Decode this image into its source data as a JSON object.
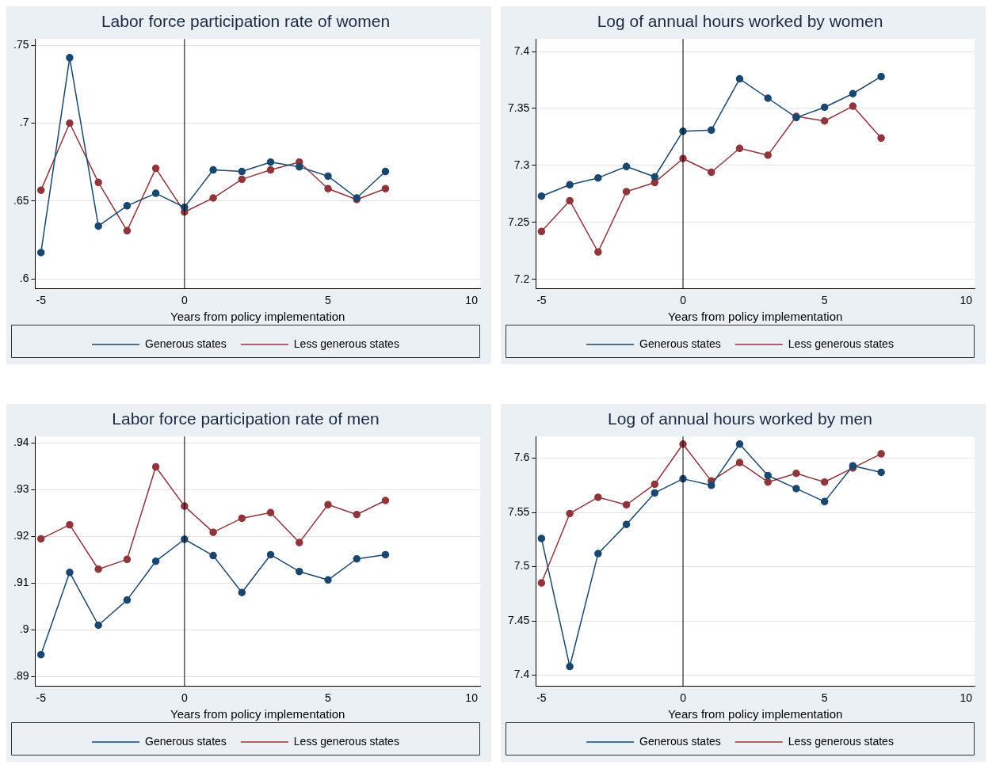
{
  "chart_data": [
    {
      "type": "line",
      "title": "Labor force participation rate of women",
      "xlabel": "Years from policy implementation",
      "x": [
        -5,
        -4,
        -3,
        -2,
        -1,
        0,
        1,
        2,
        3,
        4,
        5,
        6,
        7
      ],
      "xlim": [
        -5.2,
        10.3
      ],
      "xticks": [
        -5,
        0,
        5,
        10
      ],
      "ylim": [
        0.594,
        0.754
      ],
      "yticks": [
        {
          "value": 0.6,
          "label": ".6"
        },
        {
          "value": 0.65,
          "label": ".65"
        },
        {
          "value": 0.7,
          "label": ".7"
        },
        {
          "value": 0.75,
          "label": ".75"
        }
      ],
      "grid": "y",
      "legend": "bottom",
      "marker": "circle",
      "line_style": "solid",
      "ref_lines": [
        {
          "axis": "x",
          "value": 0,
          "color": "#000000"
        }
      ],
      "series": [
        {
          "name": "Generous states",
          "color": "#1a476f",
          "values": [
            0.617,
            0.742,
            0.634,
            0.647,
            0.655,
            0.646,
            0.67,
            0.669,
            0.675,
            0.672,
            0.666,
            0.652,
            0.669
          ]
        },
        {
          "name": "Less generous states",
          "color": "#90353b",
          "values": [
            0.657,
            0.7,
            0.662,
            0.631,
            0.671,
            0.643,
            0.652,
            0.664,
            0.67,
            0.675,
            0.658,
            0.651,
            0.658
          ]
        }
      ]
    },
    {
      "type": "line",
      "title": "Log of annual hours worked by women",
      "xlabel": "Years from policy implementation",
      "x": [
        -5,
        -4,
        -3,
        -2,
        -1,
        0,
        1,
        2,
        3,
        4,
        5,
        6,
        7
      ],
      "xlim": [
        -5.2,
        10.3
      ],
      "xticks": [
        -5,
        0,
        5,
        10
      ],
      "ylim": [
        7.192,
        7.411
      ],
      "yticks": [
        7.2,
        7.25,
        7.3,
        7.35,
        7.4
      ],
      "grid": "y",
      "legend": "bottom",
      "marker": "circle",
      "line_style": "solid",
      "ref_lines": [
        {
          "axis": "x",
          "value": 0,
          "color": "#000000"
        }
      ],
      "series": [
        {
          "name": "Generous states",
          "color": "#1a476f",
          "values": [
            7.273,
            7.283,
            7.289,
            7.299,
            7.29,
            7.33,
            7.331,
            7.376,
            7.359,
            7.342,
            7.351,
            7.363,
            7.378
          ]
        },
        {
          "name": "Less generous states",
          "color": "#90353b",
          "values": [
            7.242,
            7.269,
            7.224,
            7.277,
            7.285,
            7.306,
            7.294,
            7.315,
            7.309,
            7.343,
            7.339,
            7.352,
            7.324
          ]
        }
      ]
    },
    {
      "type": "line",
      "title": "Labor force participation rate of men",
      "xlabel": "Years from policy implementation",
      "x": [
        -5,
        -4,
        -3,
        -2,
        -1,
        0,
        1,
        2,
        3,
        4,
        5,
        6,
        7
      ],
      "xlim": [
        -5.2,
        10.3
      ],
      "xticks": [
        -5,
        0,
        5,
        10
      ],
      "ylim": [
        0.888,
        0.9414
      ],
      "yticks": [
        {
          "value": 0.89,
          "label": ".89"
        },
        {
          "value": 0.9,
          "label": ".9"
        },
        {
          "value": 0.91,
          "label": ".91"
        },
        {
          "value": 0.92,
          "label": ".92"
        },
        {
          "value": 0.93,
          "label": ".93"
        },
        {
          "value": 0.94,
          "label": ".94"
        }
      ],
      "grid": "y",
      "legend": "bottom",
      "marker": "circle",
      "line_style": "solid",
      "ref_lines": [
        {
          "axis": "x",
          "value": 0,
          "color": "#000000"
        }
      ],
      "series": [
        {
          "name": "Generous states",
          "color": "#1a476f",
          "values": [
            0.8947,
            0.9123,
            0.901,
            0.9064,
            0.9147,
            0.9194,
            0.9159,
            0.908,
            0.9161,
            0.9125,
            0.9107,
            0.9152,
            0.9161
          ]
        },
        {
          "name": "Less generous states",
          "color": "#90353b",
          "values": [
            0.9195,
            0.9225,
            0.913,
            0.9151,
            0.9349,
            0.9265,
            0.9209,
            0.9239,
            0.9251,
            0.9187,
            0.9268,
            0.9247,
            0.9277
          ]
        }
      ]
    },
    {
      "type": "line",
      "title": "Log of annual hours worked by men",
      "xlabel": "Years from policy implementation",
      "x": [
        -5,
        -4,
        -3,
        -2,
        -1,
        0,
        1,
        2,
        3,
        4,
        5,
        6,
        7
      ],
      "xlim": [
        -5.2,
        10.3
      ],
      "xticks": [
        -5,
        0,
        5,
        10
      ],
      "ylim": [
        7.39,
        7.62
      ],
      "yticks": [
        7.4,
        7.45,
        7.5,
        7.55,
        7.6
      ],
      "grid": "y",
      "legend": "bottom",
      "marker": "circle",
      "line_style": "solid",
      "ref_lines": [
        {
          "axis": "x",
          "value": 0,
          "color": "#000000"
        }
      ],
      "series": [
        {
          "name": "Generous states",
          "color": "#1a476f",
          "values": [
            7.526,
            7.408,
            7.512,
            7.539,
            7.568,
            7.581,
            7.575,
            7.613,
            7.584,
            7.572,
            7.56,
            7.593,
            7.587
          ]
        },
        {
          "name": "Less generous states",
          "color": "#90353b",
          "values": [
            7.485,
            7.549,
            7.564,
            7.557,
            7.576,
            7.613,
            7.579,
            7.596,
            7.578,
            7.586,
            7.578,
            7.591,
            7.604
          ]
        }
      ]
    }
  ]
}
